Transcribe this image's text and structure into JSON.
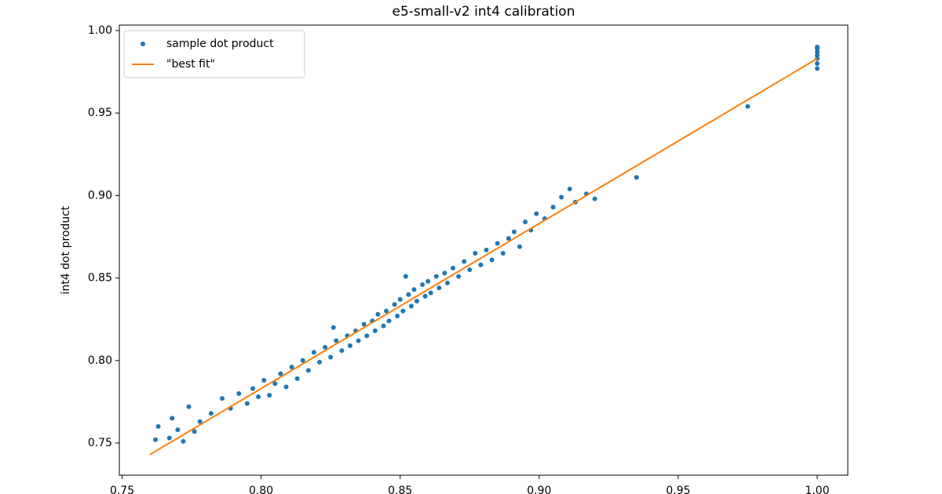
{
  "chart_data": {
    "type": "scatter",
    "title": "e5-small-v2 int4 calibration",
    "ylabel": "int4 dot product",
    "xlim": [
      0.749,
      1.011
    ],
    "ylim": [
      0.7305,
      1.0033
    ],
    "xticks": [
      0.75,
      {
        "value": 0.8,
        "label": "0.80"
      },
      0.85,
      {
        "value": 0.9,
        "label": "0.90"
      },
      0.95,
      {
        "value": 1.0,
        "label": "1.00"
      }
    ],
    "yticks": [
      0.75,
      {
        "value": 0.8,
        "label": "0.80"
      },
      0.85,
      {
        "value": 0.9,
        "label": "0.90"
      },
      0.95,
      {
        "value": 1.0,
        "label": "1.00"
      }
    ],
    "legend": "upper left",
    "series": [
      {
        "name": "sample dot product",
        "type": "scatter",
        "color": "#1f77b4",
        "x": [
          0.762,
          0.763,
          0.767,
          0.768,
          0.77,
          0.772,
          0.774,
          0.776,
          0.778,
          0.782,
          0.786,
          0.789,
          0.792,
          0.795,
          0.797,
          0.799,
          0.801,
          0.803,
          0.805,
          0.807,
          0.809,
          0.811,
          0.813,
          0.815,
          0.817,
          0.819,
          0.821,
          0.823,
          0.825,
          0.826,
          0.827,
          0.829,
          0.831,
          0.832,
          0.834,
          0.835,
          0.837,
          0.838,
          0.84,
          0.841,
          0.842,
          0.844,
          0.845,
          0.846,
          0.848,
          0.849,
          0.85,
          0.851,
          0.852,
          0.853,
          0.854,
          0.855,
          0.856,
          0.858,
          0.859,
          0.86,
          0.861,
          0.863,
          0.864,
          0.866,
          0.867,
          0.869,
          0.871,
          0.873,
          0.875,
          0.877,
          0.879,
          0.881,
          0.883,
          0.885,
          0.887,
          0.889,
          0.891,
          0.893,
          0.895,
          0.897,
          0.899,
          0.902,
          0.905,
          0.908,
          0.911,
          0.913,
          0.917,
          0.92,
          0.935,
          0.975,
          1.0,
          1.0,
          1.0,
          1.0,
          1.0,
          1.0,
          1.0
        ],
        "values": [
          0.752,
          0.76,
          0.753,
          0.765,
          0.758,
          0.751,
          0.772,
          0.757,
          0.763,
          0.768,
          0.777,
          0.771,
          0.78,
          0.774,
          0.783,
          0.778,
          0.788,
          0.779,
          0.786,
          0.792,
          0.784,
          0.796,
          0.789,
          0.8,
          0.794,
          0.805,
          0.799,
          0.808,
          0.802,
          0.82,
          0.812,
          0.806,
          0.815,
          0.809,
          0.818,
          0.812,
          0.822,
          0.815,
          0.824,
          0.818,
          0.828,
          0.821,
          0.83,
          0.824,
          0.834,
          0.827,
          0.837,
          0.83,
          0.851,
          0.84,
          0.833,
          0.843,
          0.836,
          0.846,
          0.839,
          0.848,
          0.841,
          0.851,
          0.844,
          0.853,
          0.847,
          0.856,
          0.851,
          0.86,
          0.855,
          0.865,
          0.858,
          0.867,
          0.861,
          0.871,
          0.865,
          0.874,
          0.878,
          0.869,
          0.884,
          0.879,
          0.889,
          0.886,
          0.893,
          0.899,
          0.904,
          0.896,
          0.901,
          0.898,
          0.911,
          0.954,
          0.977,
          0.98,
          0.983,
          0.985,
          0.987,
          0.989,
          0.99
        ]
      },
      {
        "name": "\"best fit\"",
        "type": "line",
        "color": "#ff7f0e",
        "x": [
          0.76,
          1.0
        ],
        "values": [
          0.743,
          0.983
        ]
      }
    ]
  }
}
